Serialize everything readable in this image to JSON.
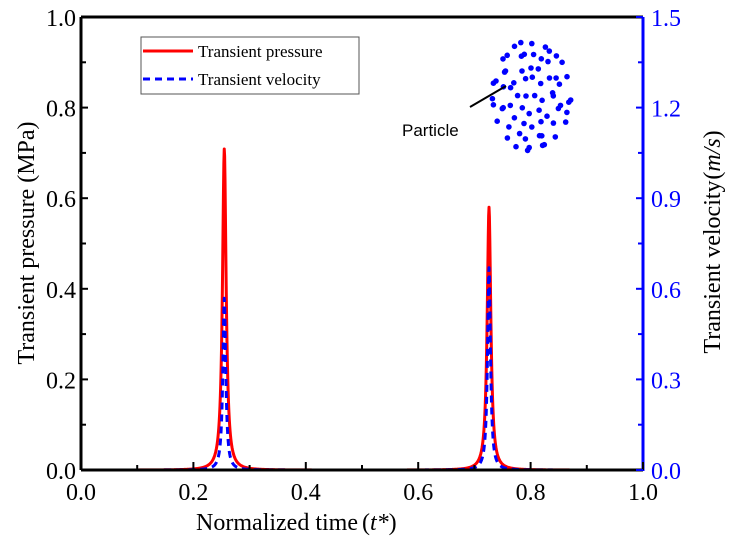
{
  "chart_data": {
    "type": "line",
    "title": "",
    "xlabel": "Normalized time",
    "xlabel_symbol": "t*",
    "ylabel_left": "Transient pressure (MPa)",
    "ylabel_right": "Transient velocity",
    "ylabel_right_unit": "m/s",
    "xlim": [
      0.0,
      1.0
    ],
    "ylim_left": [
      0.0,
      1.0
    ],
    "ylim_right": [
      0.0,
      1.5
    ],
    "xticks": [
      "0.0",
      "0.2",
      "0.4",
      "0.6",
      "0.8",
      "1.0"
    ],
    "yticks_left": [
      "0.0",
      "0.2",
      "0.4",
      "0.6",
      "0.8",
      "1.0"
    ],
    "yticks_right": [
      "0.0",
      "0.3",
      "0.6",
      "0.9",
      "1.2",
      "1.5"
    ],
    "grid": false,
    "legend_position": "top-left",
    "series": [
      {
        "name": "Transient pressure",
        "axis": "left",
        "color": "#ff0000",
        "style": "solid",
        "baseline": 0.0,
        "peaks": [
          {
            "x": 0.255,
            "y": 0.71
          },
          {
            "x": 0.726,
            "y": 0.58
          }
        ]
      },
      {
        "name": "Transient velocity",
        "axis": "right",
        "color": "#0000ff",
        "style": "dashed",
        "baseline": 0.0,
        "peaks": [
          {
            "x": 0.255,
            "y": 0.57
          },
          {
            "x": 0.726,
            "y": 0.67
          }
        ]
      }
    ],
    "x_start": 0.02,
    "x_end": 0.99,
    "annotations": [
      {
        "text": "Particle",
        "target": "particle cloud inset (blue dots)"
      }
    ],
    "left_axis_color": "#000000",
    "right_axis_color": "#0000ff"
  }
}
